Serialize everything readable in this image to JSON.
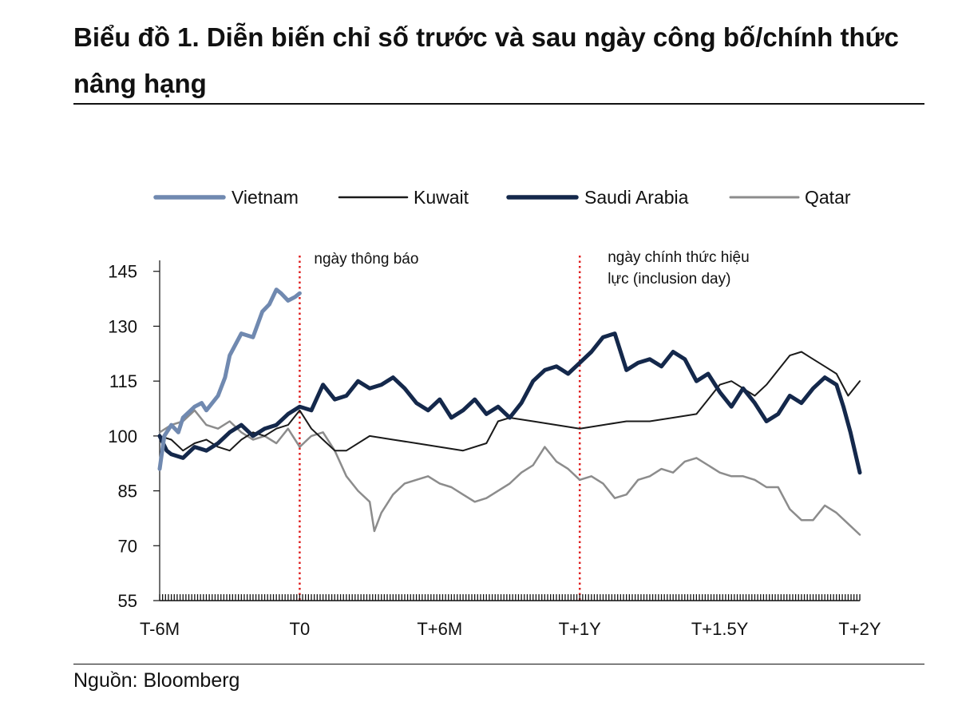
{
  "title": "Biểu đồ 1. Diễn biến chỉ số trước và sau ngày công bố/chính thức nâng hạng",
  "source": "Nguồn: Bloomberg",
  "colors": {
    "vietnam": "#7089B0",
    "kuwait": "#1A1A1A",
    "saudi": "#14284B",
    "qatar": "#8C8C8C",
    "event_line": "#E02020"
  },
  "chart_data": {
    "type": "line",
    "title": "Biểu đồ 1. Diễn biến chỉ số trước và sau ngày công bố/chính thức nâng hạng",
    "xlabel": "",
    "ylabel": "",
    "x_unit": "months relative to T0",
    "xlim": [
      -6,
      24
    ],
    "ylim": [
      55,
      148
    ],
    "yticks": [
      55,
      70,
      85,
      100,
      115,
      130,
      145
    ],
    "xticks": [
      {
        "value": -6,
        "label": "T-6M"
      },
      {
        "value": 0,
        "label": "T0"
      },
      {
        "value": 6,
        "label": "T+6M"
      },
      {
        "value": 12,
        "label": "T+1Y"
      },
      {
        "value": 18,
        "label": "T+1.5Y"
      },
      {
        "value": 24,
        "label": "T+2Y"
      }
    ],
    "legend": {
      "position": "top",
      "entries": [
        "Vietnam",
        "Kuwait",
        "Saudi Arabia",
        "Qatar"
      ]
    },
    "annotations": [
      {
        "x": 0,
        "label": "ngày thông báo"
      },
      {
        "x": 12,
        "label_lines": [
          "ngày chính thức hiệu",
          "lực (inclusion day)"
        ]
      }
    ],
    "series": [
      {
        "name": "Vietnam",
        "key": "vietnam",
        "x": [
          -6,
          -5.8,
          -5.5,
          -5.2,
          -5,
          -4.5,
          -4.2,
          -4,
          -3.5,
          -3.2,
          -3,
          -2.5,
          -2,
          -1.6,
          -1.3,
          -1,
          -0.8,
          -0.5,
          -0.2,
          0
        ],
        "y": [
          91,
          100,
          103,
          101,
          105,
          108,
          109,
          107,
          111,
          116,
          122,
          128,
          127,
          134,
          136,
          140,
          139,
          137,
          138,
          139
        ]
      },
      {
        "name": "Kuwait",
        "key": "kuwait",
        "x": [
          -6,
          -5.5,
          -5,
          -4.5,
          -4,
          -3.5,
          -3,
          -2.5,
          -2,
          -1.5,
          -1,
          -0.5,
          0,
          0.5,
          1,
          1.5,
          2,
          3,
          4,
          5,
          6,
          7,
          8,
          8.5,
          9,
          10,
          11,
          12,
          13,
          14,
          15,
          16,
          17,
          17.5,
          18,
          18.5,
          19,
          19.5,
          20,
          20.5,
          21,
          21.5,
          22,
          22.5,
          23,
          23.5,
          24
        ],
        "y": [
          100,
          99,
          96,
          98,
          99,
          97,
          96,
          99,
          101,
          100,
          102,
          103,
          107,
          102,
          99,
          96,
          96,
          100,
          99,
          98,
          97,
          96,
          98,
          104,
          105,
          104,
          103,
          102,
          103,
          104,
          104,
          105,
          106,
          110,
          114,
          115,
          113,
          111,
          114,
          118,
          122,
          123,
          121,
          119,
          117,
          111,
          115
        ]
      },
      {
        "name": "Saudi Arabia",
        "key": "saudi",
        "x": [
          -6,
          -5.7,
          -5.5,
          -5,
          -4.5,
          -4,
          -3.5,
          -3,
          -2.5,
          -2,
          -1.5,
          -1,
          -0.5,
          0,
          0.5,
          1,
          1.5,
          2,
          2.5,
          3,
          3.5,
          4,
          4.5,
          5,
          5.5,
          6,
          6.5,
          7,
          7.5,
          8,
          8.5,
          9,
          9.5,
          10,
          10.5,
          11,
          11.5,
          12,
          12.5,
          13,
          13.5,
          14,
          14.5,
          15,
          15.5,
          16,
          16.5,
          17,
          17.5,
          18,
          18.5,
          19,
          19.5,
          20,
          20.5,
          21,
          21.5,
          22,
          22.5,
          23,
          23.3,
          23.6,
          24
        ],
        "y": [
          100,
          96,
          95,
          94,
          97,
          96,
          98,
          101,
          103,
          100,
          102,
          103,
          106,
          108,
          107,
          114,
          110,
          111,
          115,
          113,
          114,
          116,
          113,
          109,
          107,
          110,
          105,
          107,
          110,
          106,
          108,
          105,
          109,
          115,
          118,
          119,
          117,
          120,
          123,
          127,
          128,
          118,
          120,
          121,
          119,
          123,
          121,
          115,
          117,
          112,
          108,
          113,
          109,
          104,
          106,
          111,
          109,
          113,
          116,
          114,
          108,
          101,
          90
        ]
      },
      {
        "name": "Qatar",
        "key": "qatar",
        "x": [
          -6,
          -5.5,
          -5,
          -4.5,
          -4,
          -3.5,
          -3,
          -2.5,
          -2,
          -1.5,
          -1,
          -0.5,
          0,
          0.5,
          1,
          1.5,
          2,
          2.5,
          3,
          3.2,
          3.5,
          4,
          4.5,
          5,
          5.5,
          6,
          6.5,
          7,
          7.5,
          8,
          8.5,
          9,
          9.5,
          10,
          10.5,
          11,
          11.5,
          12,
          12.5,
          13,
          13.5,
          14,
          14.5,
          15,
          15.5,
          16,
          16.5,
          17,
          17.5,
          18,
          18.5,
          19,
          19.5,
          20,
          20.5,
          21,
          21.5,
          22,
          22.5,
          23,
          23.5,
          24
        ],
        "y": [
          101,
          103,
          104,
          107,
          103,
          102,
          104,
          101,
          99,
          100,
          98,
          102,
          97,
          100,
          101,
          96,
          89,
          85,
          82,
          74,
          79,
          84,
          87,
          88,
          89,
          87,
          86,
          84,
          82,
          83,
          85,
          87,
          90,
          92,
          97,
          93,
          91,
          88,
          89,
          87,
          83,
          84,
          88,
          89,
          91,
          90,
          93,
          94,
          92,
          90,
          89,
          89,
          88,
          86,
          86,
          80,
          77,
          77,
          81,
          79,
          76,
          73
        ]
      }
    ]
  }
}
